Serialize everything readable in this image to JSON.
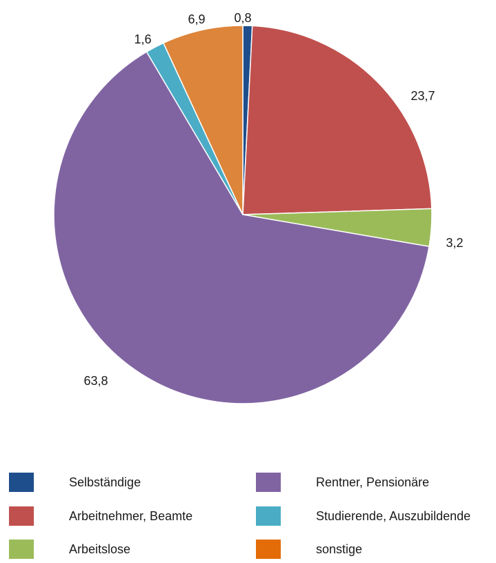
{
  "chart_data": {
    "type": "pie",
    "title": "",
    "slices": [
      {
        "label": "Selbständige",
        "value": 0.8,
        "display": "0,8",
        "color": "#1f4e8c"
      },
      {
        "label": "Arbeitnehmer, Beamte",
        "value": 23.7,
        "display": "23,7",
        "color": "#c0504d"
      },
      {
        "label": "Arbeitslose",
        "value": 3.2,
        "display": "3,2",
        "color": "#9bbb59"
      },
      {
        "label": "Rentner, Pensionäre",
        "value": 63.8,
        "display": "63,8",
        "color": "#8064a2"
      },
      {
        "label": "Studierende, Auszubildende",
        "value": 1.6,
        "display": "1,6",
        "color": "#4bacc6"
      },
      {
        "label": "sonstige",
        "value": 6.9,
        "display": "6,9",
        "color": "#dd853a"
      }
    ],
    "start": "12 o'clock",
    "direction": "clockwise",
    "legend": {
      "placement": "bottom",
      "items": [
        {
          "label": "Selbständige",
          "color": "#1f4e8c"
        },
        {
          "label": "Arbeitnehmer, Beamte",
          "color": "#c0504d"
        },
        {
          "label": "Arbeitslose",
          "color": "#9bbb59"
        },
        {
          "label": "Rentner, Pensionäre",
          "color": "#8064a2"
        },
        {
          "label": "Studierende, Auszubildende",
          "color": "#4bacc6"
        },
        {
          "label": "sonstige",
          "color": "#e36c09"
        }
      ]
    }
  }
}
